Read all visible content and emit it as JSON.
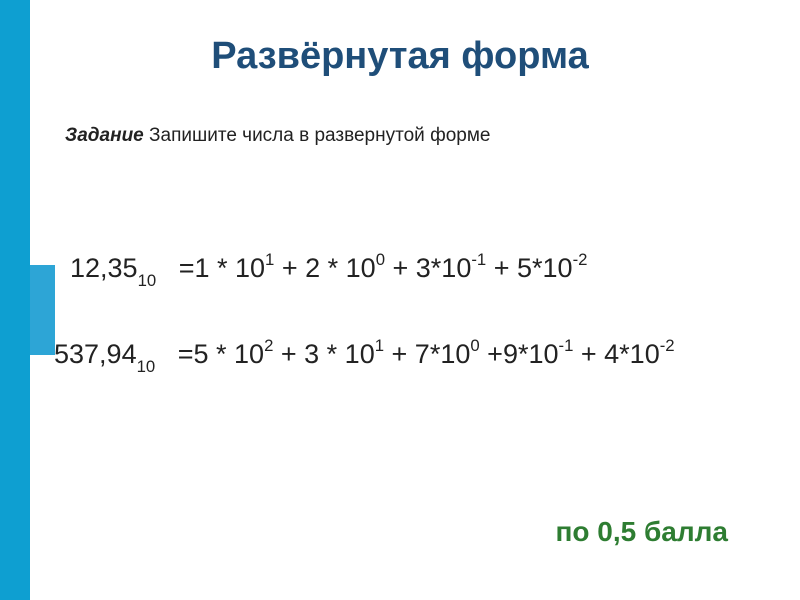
{
  "title": "Развёрнутая форма",
  "task_label": "Задание",
  "task_text": " Запишите числа в развернутой форме",
  "colors": {
    "left_bar": "#0e9fd1",
    "corner_accent": "#2da5d6",
    "title_color": "#1f4e79",
    "text_color": "#222222",
    "score_color": "#2e7d32",
    "background": "#ffffff"
  },
  "typography": {
    "font_family": "Arial, sans-serif",
    "title_fontsize": 38,
    "task_fontsize": 19,
    "equation_fontsize": 27,
    "score_fontsize": 28
  },
  "equations": [
    {
      "left_number": "12,35",
      "left_base": "10",
      "rhs_terms": [
        {
          "coef": "1",
          "base": "10",
          "exp": "1",
          "prefix": "="
        },
        {
          "coef": "2",
          "base": "10",
          "exp": "0",
          "prefix": " + "
        },
        {
          "coef": "3",
          "base": "10",
          "exp": "-1",
          "prefix": " + ",
          "tight": true
        },
        {
          "coef": "5",
          "base": "10",
          "exp": "-2",
          "prefix": " + ",
          "tight": true
        }
      ]
    },
    {
      "left_number": "537,94",
      "left_base": "10",
      "rhs_terms": [
        {
          "coef": "5",
          "base": "10",
          "exp": "2",
          "prefix": "="
        },
        {
          "coef": "3",
          "base": "10",
          "exp": "1",
          "prefix": " + "
        },
        {
          "coef": "7",
          "base": "10",
          "exp": "0",
          "prefix": " + ",
          "tight": true
        },
        {
          "coef": "9",
          "base": "10",
          "exp": "-1",
          "prefix": " +",
          "tight": true
        },
        {
          "coef": "4",
          "base": "10",
          "exp": "-2",
          "prefix": " + ",
          "tight": true
        }
      ]
    }
  ],
  "score": "по 0,5 балла"
}
